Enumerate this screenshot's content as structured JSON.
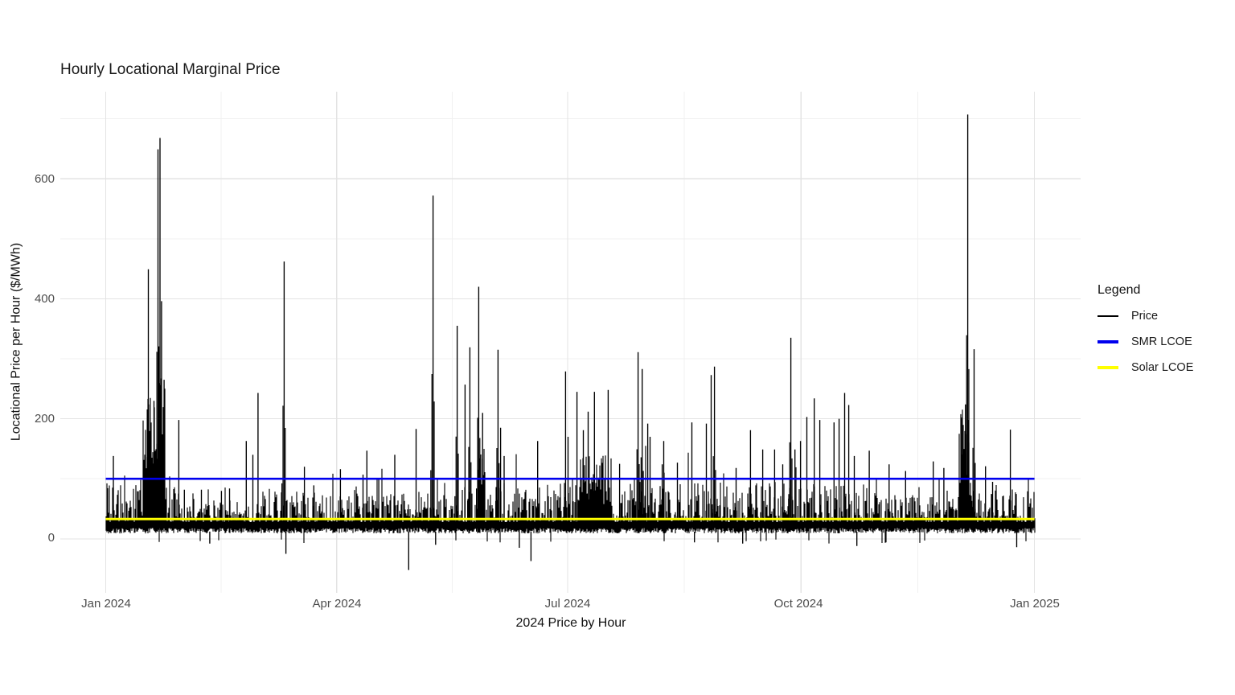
{
  "chart_data": {
    "type": "line",
    "title": "Hourly Locational Marginal Price",
    "xlabel": "2024 Price by Hour",
    "ylabel": "Locational Price per Hour ($/MWh)",
    "x_tick_labels": [
      "Jan 2024",
      "Apr 2024",
      "Jul 2024",
      "Oct 2024",
      "Jan 2025"
    ],
    "x_tick_days": [
      0,
      91,
      182,
      274,
      366
    ],
    "x_minor_days": [
      45.5,
      136.5,
      228,
      320
    ],
    "x_total_days": 366,
    "y_ticks": [
      "0",
      "200",
      "400",
      "600"
    ],
    "y_tick_values": [
      0,
      200,
      400,
      600
    ],
    "y_minor_values": [
      100,
      300,
      500,
      700
    ],
    "ylim": [
      -90,
      745
    ],
    "grid": true,
    "background": "#ffffff",
    "grid_major_color": "#e3e3e3",
    "grid_minor_color": "#f1f1f1",
    "legend": {
      "title": "Legend",
      "position": "right",
      "entries": [
        {
          "label": "Price",
          "color": "#000000",
          "thickness": 2
        },
        {
          "label": "SMR LCOE",
          "color": "#0000ee",
          "thickness": 3.5
        },
        {
          "label": "Solar LCOE",
          "color": "#ffff00",
          "thickness": 3.5
        }
      ]
    },
    "reference_lines": [
      {
        "name": "SMR LCOE",
        "value": 100,
        "color": "#0000ee",
        "width": 2.6
      },
      {
        "name": "Solar LCOE",
        "value": 33,
        "color": "#ffff00",
        "width": 3
      }
    ],
    "series": {
      "name": "Price",
      "color": "#000000",
      "unit": "$/MWh",
      "baseline": {
        "low": 9,
        "typical_top": 28,
        "top_spread": 60
      },
      "seasonal": [
        1.1,
        0.6,
        0.85,
        0.8,
        1.05,
        1.1,
        1.2,
        1.1,
        1.15,
        1.05,
        0.8,
        0.95
      ],
      "clusters": [
        [
          14.5,
          23.5,
          90,
          270
        ],
        [
          146.8,
          149.6,
          70,
          205
        ],
        [
          186.0,
          199.5,
          50,
          140
        ],
        [
          336.3,
          341.3,
          70,
          225
        ]
      ],
      "spikes": [
        [
          3,
          138
        ],
        [
          16.8,
          449
        ],
        [
          19,
          230
        ],
        [
          20.6,
          649
        ],
        [
          21.4,
          668
        ],
        [
          22,
          396
        ],
        [
          23,
          265
        ],
        [
          28.8,
          198
        ],
        [
          31,
          82
        ],
        [
          37.7,
          82
        ],
        [
          45.6,
          80
        ],
        [
          48.8,
          84
        ],
        [
          55.4,
          163
        ],
        [
          58,
          140
        ],
        [
          60,
          243
        ],
        [
          70.3,
          462
        ],
        [
          78.3,
          120
        ],
        [
          82,
          89
        ],
        [
          92.5,
          116
        ],
        [
          101.4,
          107
        ],
        [
          102.9,
          147
        ],
        [
          107.6,
          100
        ],
        [
          113.9,
          140
        ],
        [
          122.3,
          183
        ],
        [
          129,
          572
        ],
        [
          138.5,
          355
        ],
        [
          141.6,
          257
        ],
        [
          143.5,
          319
        ],
        [
          147,
          420
        ],
        [
          148.5,
          210
        ],
        [
          154.6,
          315
        ],
        [
          155.6,
          185
        ],
        [
          157,
          138
        ],
        [
          170.2,
          163
        ],
        [
          181.2,
          279
        ],
        [
          182.2,
          170
        ],
        [
          185.7,
          245
        ],
        [
          188.2,
          181
        ],
        [
          190.1,
          212
        ],
        [
          192.6,
          245
        ],
        [
          198,
          248
        ],
        [
          202.5,
          125
        ],
        [
          209.8,
          311
        ],
        [
          211.4,
          283
        ],
        [
          213.6,
          192
        ],
        [
          214.5,
          170
        ],
        [
          219.3,
          124
        ],
        [
          219.9,
          163
        ],
        [
          225.3,
          127
        ],
        [
          231,
          194
        ],
        [
          236.7,
          192
        ],
        [
          238.6,
          273
        ],
        [
          239.9,
          287
        ],
        [
          248.4,
          118
        ],
        [
          254.1,
          181
        ],
        [
          258.9,
          149
        ],
        [
          263.6,
          149
        ],
        [
          266.8,
          124
        ],
        [
          270,
          335
        ],
        [
          271.6,
          149
        ],
        [
          273.8,
          163
        ],
        [
          276.3,
          203
        ],
        [
          279.2,
          234
        ],
        [
          281.4,
          198
        ],
        [
          287,
          194
        ],
        [
          289,
          200
        ],
        [
          291.2,
          243
        ],
        [
          292.8,
          223
        ],
        [
          295,
          138
        ],
        [
          300.9,
          147
        ],
        [
          308.7,
          124
        ],
        [
          315.2,
          113
        ],
        [
          326.1,
          129
        ],
        [
          330.3,
          118
        ],
        [
          337.2,
          202
        ],
        [
          338.8,
          224
        ],
        [
          339.7,
          707
        ],
        [
          342.2,
          316
        ],
        [
          346.7,
          121
        ],
        [
          349.5,
          95
        ],
        [
          356.5,
          182
        ]
      ],
      "dips": [
        [
          41,
          -8
        ],
        [
          71,
          -25
        ],
        [
          119.4,
          -52
        ],
        [
          130,
          -10
        ],
        [
          163,
          -15
        ],
        [
          167.6,
          -37
        ],
        [
          232,
          -6
        ],
        [
          251,
          -8
        ],
        [
          296,
          -12
        ],
        [
          359,
          -14
        ]
      ]
    }
  }
}
